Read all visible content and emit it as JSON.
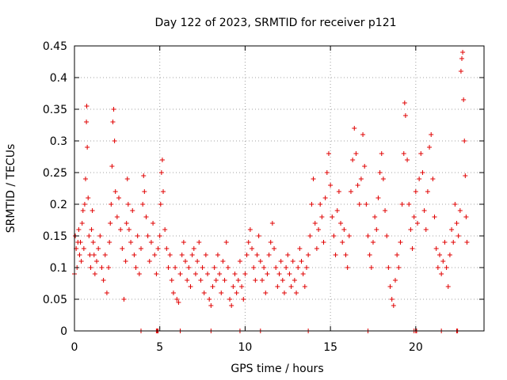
{
  "chart_data": {
    "type": "scatter",
    "title": "Day 122 of 2023, SRMTID for receiver p121",
    "xlabel": "GPS time / hours",
    "ylabel": "SRMTID / TECUs",
    "xlim": [
      0,
      24
    ],
    "ylim": [
      0,
      0.45
    ],
    "xticks": [
      0,
      5,
      10,
      15,
      20
    ],
    "xtick_labels": [
      "0",
      "5",
      "10",
      "15",
      "20"
    ],
    "yticks": [
      0,
      0.05,
      0.1,
      0.15,
      0.2,
      0.25,
      0.3,
      0.35,
      0.4,
      0.45
    ],
    "ytick_labels": [
      "0",
      "0.05",
      "0.1",
      "0.15",
      "0.2",
      "0.25",
      "0.3",
      "0.35",
      "0.4",
      "0.45"
    ],
    "grid": true,
    "marker": "+",
    "color": "#e00000",
    "series": [
      {
        "name": "SRMTID",
        "points": [
          [
            0.0,
            0.09
          ],
          [
            0.05,
            0.15
          ],
          [
            0.1,
            0.13
          ],
          [
            0.15,
            0.1
          ],
          [
            0.2,
            0.14
          ],
          [
            0.25,
            0.16
          ],
          [
            0.3,
            0.12
          ],
          [
            0.35,
            0.14
          ],
          [
            0.4,
            0.11
          ],
          [
            0.45,
            0.17
          ],
          [
            0.5,
            0.19
          ],
          [
            0.55,
            0.13
          ],
          [
            0.6,
            0.2
          ],
          [
            0.65,
            0.24
          ],
          [
            0.7,
            0.33
          ],
          [
            0.72,
            0.355
          ],
          [
            0.75,
            0.29
          ],
          [
            0.8,
            0.21
          ],
          [
            0.85,
            0.15
          ],
          [
            0.9,
            0.12
          ],
          [
            0.95,
            0.1
          ],
          [
            1.0,
            0.16
          ],
          [
            1.05,
            0.19
          ],
          [
            1.1,
            0.14
          ],
          [
            1.15,
            0.12
          ],
          [
            1.2,
            0.09
          ],
          [
            1.3,
            0.11
          ],
          [
            1.4,
            0.13
          ],
          [
            1.5,
            0.15
          ],
          [
            1.6,
            0.1
          ],
          [
            1.7,
            0.08
          ],
          [
            1.8,
            0.12
          ],
          [
            1.9,
            0.06
          ],
          [
            2.0,
            0.1
          ],
          [
            2.05,
            0.14
          ],
          [
            2.1,
            0.17
          ],
          [
            2.15,
            0.2
          ],
          [
            2.2,
            0.26
          ],
          [
            2.25,
            0.33
          ],
          [
            2.3,
            0.35
          ],
          [
            2.35,
            0.3
          ],
          [
            2.4,
            0.22
          ],
          [
            2.5,
            0.18
          ],
          [
            2.6,
            0.21
          ],
          [
            2.7,
            0.16
          ],
          [
            2.8,
            0.13
          ],
          [
            2.9,
            0.05
          ],
          [
            3.0,
            0.11
          ],
          [
            3.05,
            0.17
          ],
          [
            3.1,
            0.24
          ],
          [
            3.15,
            0.2
          ],
          [
            3.2,
            0.16
          ],
          [
            3.3,
            0.14
          ],
          [
            3.4,
            0.19
          ],
          [
            3.5,
            0.12
          ],
          [
            3.6,
            0.1
          ],
          [
            3.7,
            0.15
          ],
          [
            3.8,
            0.09
          ],
          [
            3.9,
            0.13
          ],
          [
            4.0,
            0.2
          ],
          [
            4.05,
            0.245
          ],
          [
            4.1,
            0.22
          ],
          [
            4.2,
            0.18
          ],
          [
            4.3,
            0.15
          ],
          [
            4.4,
            0.11
          ],
          [
            4.5,
            0.14
          ],
          [
            4.6,
            0.17
          ],
          [
            4.7,
            0.12
          ],
          [
            4.8,
            0.09
          ],
          [
            4.9,
            0.13
          ],
          [
            5.0,
            0.15
          ],
          [
            5.05,
            0.2
          ],
          [
            5.1,
            0.25
          ],
          [
            5.15,
            0.27
          ],
          [
            5.2,
            0.22
          ],
          [
            5.3,
            0.16
          ],
          [
            5.4,
            0.13
          ],
          [
            5.5,
            0.1
          ],
          [
            5.6,
            0.12
          ],
          [
            5.7,
            0.08
          ],
          [
            5.8,
            0.06
          ],
          [
            5.9,
            0.1
          ],
          [
            6.0,
            0.05
          ],
          [
            6.1,
            0.045
          ],
          [
            6.2,
            0.09
          ],
          [
            6.3,
            0.12
          ],
          [
            6.4,
            0.14
          ],
          [
            6.5,
            0.11
          ],
          [
            6.6,
            0.08
          ],
          [
            6.7,
            0.1
          ],
          [
            6.8,
            0.07
          ],
          [
            6.9,
            0.12
          ],
          [
            7.0,
            0.13
          ],
          [
            7.1,
            0.09
          ],
          [
            7.2,
            0.11
          ],
          [
            7.3,
            0.14
          ],
          [
            7.4,
            0.08
          ],
          [
            7.5,
            0.1
          ],
          [
            7.6,
            0.06
          ],
          [
            7.7,
            0.12
          ],
          [
            7.8,
            0.09
          ],
          [
            7.9,
            0.05
          ],
          [
            8.0,
            0.04
          ],
          [
            8.1,
            0.07
          ],
          [
            8.2,
            0.1
          ],
          [
            8.3,
            0.08
          ],
          [
            8.4,
            0.12
          ],
          [
            8.5,
            0.09
          ],
          [
            8.6,
            0.06
          ],
          [
            8.7,
            0.11
          ],
          [
            8.8,
            0.08
          ],
          [
            8.9,
            0.14
          ],
          [
            9.0,
            0.1
          ],
          [
            9.1,
            0.05
          ],
          [
            9.2,
            0.04
          ],
          [
            9.3,
            0.07
          ],
          [
            9.4,
            0.09
          ],
          [
            9.5,
            0.06
          ],
          [
            9.6,
            0.08
          ],
          [
            9.7,
            0.11
          ],
          [
            9.8,
            0.07
          ],
          [
            9.9,
            0.05
          ],
          [
            10.0,
            0.09
          ],
          [
            10.1,
            0.12
          ],
          [
            10.2,
            0.14
          ],
          [
            10.3,
            0.16
          ],
          [
            10.4,
            0.13
          ],
          [
            10.5,
            0.1
          ],
          [
            10.6,
            0.08
          ],
          [
            10.7,
            0.12
          ],
          [
            10.8,
            0.15
          ],
          [
            10.9,
            0.11
          ],
          [
            11.0,
            0.08
          ],
          [
            11.1,
            0.1
          ],
          [
            11.2,
            0.06
          ],
          [
            11.3,
            0.09
          ],
          [
            11.4,
            0.12
          ],
          [
            11.5,
            0.14
          ],
          [
            11.6,
            0.17
          ],
          [
            11.7,
            0.13
          ],
          [
            11.8,
            0.1
          ],
          [
            11.9,
            0.07
          ],
          [
            12.0,
            0.09
          ],
          [
            12.1,
            0.11
          ],
          [
            12.2,
            0.08
          ],
          [
            12.3,
            0.06
          ],
          [
            12.4,
            0.1
          ],
          [
            12.5,
            0.12
          ],
          [
            12.6,
            0.09
          ],
          [
            12.7,
            0.07
          ],
          [
            12.8,
            0.11
          ],
          [
            12.9,
            0.08
          ],
          [
            13.0,
            0.06
          ],
          [
            13.1,
            0.1
          ],
          [
            13.2,
            0.13
          ],
          [
            13.3,
            0.11
          ],
          [
            13.4,
            0.09
          ],
          [
            13.5,
            0.07
          ],
          [
            13.6,
            0.1
          ],
          [
            13.7,
            0.12
          ],
          [
            13.8,
            0.15
          ],
          [
            13.9,
            0.2
          ],
          [
            14.0,
            0.24
          ],
          [
            14.1,
            0.17
          ],
          [
            14.2,
            0.13
          ],
          [
            14.3,
            0.16
          ],
          [
            14.4,
            0.2
          ],
          [
            14.5,
            0.18
          ],
          [
            14.6,
            0.14
          ],
          [
            14.7,
            0.21
          ],
          [
            14.8,
            0.25
          ],
          [
            14.9,
            0.28
          ],
          [
            15.0,
            0.23
          ],
          [
            15.1,
            0.18
          ],
          [
            15.2,
            0.15
          ],
          [
            15.3,
            0.12
          ],
          [
            15.4,
            0.19
          ],
          [
            15.5,
            0.22
          ],
          [
            15.6,
            0.17
          ],
          [
            15.7,
            0.14
          ],
          [
            15.8,
            0.16
          ],
          [
            15.9,
            0.12
          ],
          [
            16.0,
            0.1
          ],
          [
            16.1,
            0.15
          ],
          [
            16.2,
            0.22
          ],
          [
            16.3,
            0.27
          ],
          [
            16.4,
            0.32
          ],
          [
            16.5,
            0.28
          ],
          [
            16.6,
            0.23
          ],
          [
            16.7,
            0.2
          ],
          [
            16.8,
            0.24
          ],
          [
            16.9,
            0.31
          ],
          [
            17.0,
            0.26
          ],
          [
            17.1,
            0.2
          ],
          [
            17.2,
            0.15
          ],
          [
            17.3,
            0.12
          ],
          [
            17.4,
            0.1
          ],
          [
            17.5,
            0.14
          ],
          [
            17.6,
            0.18
          ],
          [
            17.7,
            0.16
          ],
          [
            17.8,
            0.21
          ],
          [
            17.9,
            0.25
          ],
          [
            18.0,
            0.28
          ],
          [
            18.1,
            0.24
          ],
          [
            18.2,
            0.19
          ],
          [
            18.3,
            0.15
          ],
          [
            18.4,
            0.1
          ],
          [
            18.5,
            0.07
          ],
          [
            18.6,
            0.05
          ],
          [
            18.7,
            0.04
          ],
          [
            18.8,
            0.08
          ],
          [
            18.9,
            0.12
          ],
          [
            19.0,
            0.1
          ],
          [
            19.1,
            0.14
          ],
          [
            19.2,
            0.2
          ],
          [
            19.3,
            0.28
          ],
          [
            19.35,
            0.36
          ],
          [
            19.4,
            0.34
          ],
          [
            19.5,
            0.27
          ],
          [
            19.6,
            0.2
          ],
          [
            19.7,
            0.16
          ],
          [
            19.8,
            0.13
          ],
          [
            19.9,
            0.18
          ],
          [
            20.0,
            0.22
          ],
          [
            20.1,
            0.17
          ],
          [
            20.2,
            0.24
          ],
          [
            20.3,
            0.28
          ],
          [
            20.4,
            0.25
          ],
          [
            20.5,
            0.19
          ],
          [
            20.6,
            0.16
          ],
          [
            20.7,
            0.22
          ],
          [
            20.8,
            0.29
          ],
          [
            20.9,
            0.31
          ],
          [
            21.0,
            0.24
          ],
          [
            21.1,
            0.18
          ],
          [
            21.2,
            0.13
          ],
          [
            21.3,
            0.1
          ],
          [
            21.4,
            0.12
          ],
          [
            21.5,
            0.09
          ],
          [
            21.6,
            0.11
          ],
          [
            21.7,
            0.14
          ],
          [
            21.8,
            0.1
          ],
          [
            21.9,
            0.07
          ],
          [
            22.0,
            0.12
          ],
          [
            22.1,
            0.16
          ],
          [
            22.2,
            0.14
          ],
          [
            22.3,
            0.2
          ],
          [
            22.4,
            0.17
          ],
          [
            22.5,
            0.15
          ],
          [
            22.6,
            0.19
          ],
          [
            22.65,
            0.41
          ],
          [
            22.7,
            0.43
          ],
          [
            22.75,
            0.44
          ],
          [
            22.8,
            0.365
          ],
          [
            22.85,
            0.3
          ],
          [
            22.9,
            0.245
          ],
          [
            22.95,
            0.18
          ],
          [
            23.0,
            0.14
          ]
        ]
      }
    ],
    "zero_points_x": [
      3.9,
      4.8,
      4.85,
      4.9,
      6.2,
      8.0,
      9.7,
      10.9,
      13.7,
      17.2,
      19.9,
      20.0,
      20.05,
      21.5,
      22.4,
      22.45
    ]
  }
}
